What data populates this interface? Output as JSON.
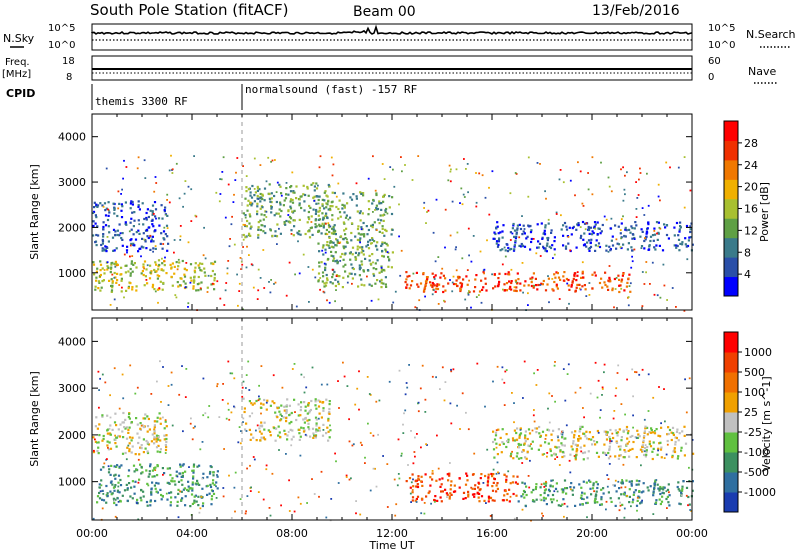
{
  "header": {
    "station": "South Pole Station (fitACF)",
    "beam": "Beam 00",
    "date": "13/Feb/2016"
  },
  "summary": {
    "nsky_label": "N.Sky",
    "nsky_ticks": [
      "10^5",
      "10^0"
    ],
    "nsearch_label": "N.Search",
    "nsearch_ticks": [
      "10^5",
      "10^0"
    ],
    "freq_label": "Freq.",
    "freq_unit": "[MHz]",
    "freq_ticks": [
      "18",
      "8"
    ],
    "nave_label": "Nave",
    "nave_ticks": [
      "60",
      "0"
    ],
    "cpid_label": "CPID",
    "cpid_segments": [
      {
        "label": "themis 3300 RF",
        "start_hour": 0
      },
      {
        "label": "normalsound (fast) -157 RF",
        "start_hour": 6
      }
    ]
  },
  "chart_data": [
    {
      "type": "heatmap",
      "name": "power",
      "ylabel": "Slant Range [km]",
      "xlabel": "",
      "xlim_hours": [
        0,
        24
      ],
      "ylim": [
        180,
        4500
      ],
      "yticks": [
        1000,
        2000,
        3000,
        4000
      ],
      "colorbar": {
        "label": "Power [dB]",
        "ticks": [
          "28",
          "24",
          "20",
          "16",
          "12",
          "8",
          "4"
        ],
        "colors": [
          "#0000ff",
          "#2a4fa8",
          "#3a7a8a",
          "#5fa045",
          "#a8c030",
          "#f0b000",
          "#f07800",
          "#f03000",
          "#ff0000"
        ]
      },
      "bands": [
        {
          "t0": 12.5,
          "t1": 21.5,
          "r0": 600,
          "r1": 1050,
          "level": 7
        },
        {
          "t0": 16.0,
          "t1": 24.0,
          "r0": 1500,
          "r1": 2150,
          "level": 1
        },
        {
          "t0": 0.0,
          "t1": 3.0,
          "r0": 1500,
          "r1": 2600,
          "level": 1
        },
        {
          "t0": 0.0,
          "t1": 5.0,
          "r0": 600,
          "r1": 1300,
          "level": 4
        },
        {
          "t0": 6.0,
          "t1": 9.5,
          "r0": 1800,
          "r1": 3000,
          "level": 3
        },
        {
          "t0": 9.0,
          "t1": 12.0,
          "r0": 700,
          "r1": 2800,
          "level": 3
        }
      ]
    },
    {
      "type": "heatmap",
      "name": "velocity",
      "ylabel": "Slant Range [km]",
      "xlabel": "Time UT",
      "xlim_hours": [
        0,
        24
      ],
      "xticks": [
        "00:00",
        "04:00",
        "08:00",
        "12:00",
        "16:00",
        "20:00",
        "00:00"
      ],
      "ylim": [
        180,
        4500
      ],
      "yticks": [
        1000,
        2000,
        3000,
        4000
      ],
      "colorbar": {
        "label": "Velocity [m s^-1]",
        "ticks": [
          "1000",
          "500",
          "100",
          "25",
          "-25",
          "-100",
          "-500",
          "-1000"
        ],
        "colors": [
          "#1a3cb0",
          "#2f6fa0",
          "#3c9060",
          "#60c040",
          "#c0c0c0",
          "#f0a000",
          "#f07000",
          "#f04000",
          "#ff0000"
        ]
      },
      "bands": [
        {
          "t0": 12.5,
          "t1": 17.0,
          "r0": 600,
          "r1": 1200,
          "level": 7
        },
        {
          "t0": 16.0,
          "t1": 24.0,
          "r0": 1500,
          "r1": 2200,
          "level": 4
        },
        {
          "t0": 17.0,
          "t1": 24.0,
          "r0": 500,
          "r1": 1050,
          "level": 2
        },
        {
          "t0": 0.0,
          "t1": 5.0,
          "r0": 500,
          "r1": 1400,
          "level": 2
        },
        {
          "t0": 0.0,
          "t1": 3.0,
          "r0": 1600,
          "r1": 2500,
          "level": 4
        },
        {
          "t0": 6.0,
          "t1": 9.5,
          "r0": 1900,
          "r1": 2800,
          "level": 4
        }
      ]
    }
  ]
}
